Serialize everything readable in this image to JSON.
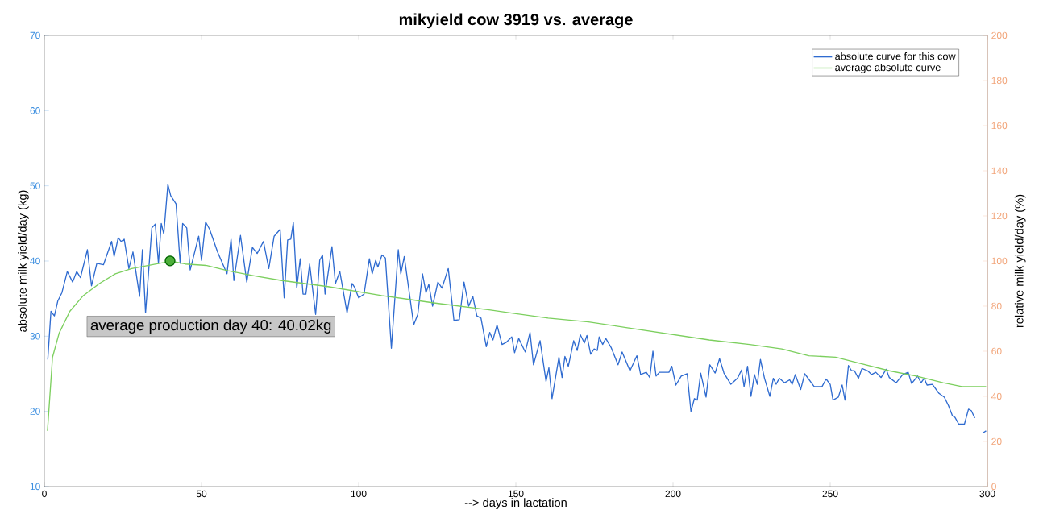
{
  "chart_data": {
    "type": "line",
    "title": "mikyield cow 3919 vs. average",
    "xlabel": "--> days in lactation",
    "ylabel": "absolute milk yield/day (kg)",
    "y2label": "relative milk yield/day (%)",
    "xlim": [
      0,
      300
    ],
    "xticks": [
      0,
      50,
      100,
      150,
      200,
      250,
      300
    ],
    "ylim": [
      10,
      70
    ],
    "yticks": [
      10,
      20,
      30,
      40,
      50,
      60,
      70
    ],
    "y2lim": [
      0,
      200
    ],
    "y2ticks": [
      0,
      20,
      40,
      60,
      80,
      100,
      120,
      140,
      160,
      180,
      200
    ],
    "legend": "top right",
    "grid": false,
    "series": [
      {
        "name": "absolute curve for this cow",
        "color": "#2f6bd0",
        "x": [
          1.1,
          2.1,
          3.2,
          4.3,
          5.6,
          7.3,
          9.0,
          10.3,
          11.5,
          13.7,
          15.0,
          16.7,
          18.8,
          21.4,
          22.2,
          23.5,
          24.4,
          25.4,
          26.9,
          28.2,
          30.3,
          31.2,
          32.2,
          34.2,
          35.3,
          36.3,
          37.2,
          38.0,
          39.3,
          40.2,
          41.9,
          43.2,
          44.0,
          45.3,
          46.4,
          49.1,
          50.0,
          51.3,
          52.6,
          55.1,
          58.1,
          59.4,
          60.3,
          62.4,
          64.4,
          66.2,
          67.7,
          69.7,
          71.4,
          73.1,
          75.0,
          76.3,
          77.4,
          78.4,
          79.2,
          80.3,
          81.4,
          82.3,
          83.2,
          84.4,
          86.3,
          87.6,
          88.5,
          89.3,
          91.5,
          92.6,
          94.0,
          96.3,
          97.9,
          98.7,
          100.0,
          101.7,
          103.4,
          104.3,
          105.4,
          106.1,
          107.4,
          108.5,
          110.4,
          112.6,
          113.4,
          114.5,
          117.5,
          118.8,
          120.3,
          121.4,
          122.3,
          123.5,
          125.2,
          126.5,
          128.5,
          130.3,
          132.0,
          133.5,
          135.0,
          136.3,
          137.6,
          138.9,
          140.6,
          141.7,
          142.7,
          144.0,
          145.6,
          147.0,
          148.7,
          149.6,
          150.9,
          153.0,
          154.5,
          155.6,
          157.7,
          159.6,
          160.5,
          161.5,
          163.7,
          164.7,
          165.6,
          166.7,
          168.4,
          169.5,
          170.5,
          171.8,
          172.6,
          173.8,
          174.9,
          175.9,
          176.5,
          177.6,
          178.6,
          180.3,
          182.5,
          183.8,
          186.3,
          188.5,
          189.7,
          191.5,
          192.6,
          193.6,
          194.6,
          195.7,
          198.7,
          199.6,
          200.9,
          202.6,
          204.5,
          205.7,
          206.8,
          207.7,
          208.8,
          210.5,
          211.7,
          213.4,
          214.8,
          216.2,
          218.4,
          220.5,
          221.8,
          222.6,
          223.7,
          224.8,
          225.9,
          226.8,
          227.8,
          229.1,
          230.8,
          231.9,
          232.8,
          233.8,
          235.5,
          237.1,
          237.9,
          238.9,
          240.6,
          241.9,
          244.9,
          247.4,
          248.7,
          250.0,
          250.9,
          252.6,
          253.8,
          254.7,
          255.8,
          256.8,
          257.7,
          259.0,
          260.1,
          261.9,
          263.2,
          264.5,
          266.2,
          267.8,
          268.8,
          271.0,
          273.1,
          274.8,
          275.9,
          277.8,
          278.9,
          279.9,
          280.8,
          282.5,
          284.6,
          286.3,
          287.6,
          288.9,
          289.7,
          290.9,
          292.7,
          294.0,
          294.9,
          296.0,
          297.5,
          298.4,
          299.6
        ],
        "values": [
          26.9,
          33.3,
          32.7,
          34.7,
          35.8,
          38.6,
          37.2,
          38.6,
          37.8,
          41.5,
          36.7,
          39.7,
          39.5,
          42.6,
          40.6,
          43.1,
          42.6,
          42.9,
          39.0,
          41.2,
          35.3,
          41.5,
          33.1,
          44.4,
          44.9,
          39.7,
          45.0,
          43.6,
          50.2,
          48.7,
          47.6,
          39.7,
          45.0,
          44.4,
          38.8,
          43.3,
          40.1,
          45.2,
          44.2,
          41.2,
          38.3,
          42.9,
          37.4,
          43.4,
          37.2,
          41.8,
          41.0,
          42.6,
          39.0,
          43.3,
          44.2,
          35.1,
          42.8,
          42.9,
          45.1,
          36.4,
          40.3,
          35.6,
          35.6,
          39.6,
          32.9,
          40.1,
          40.8,
          35.6,
          41.9,
          37.0,
          38.6,
          33.1,
          37.0,
          36.5,
          35.1,
          35.6,
          40.3,
          38.3,
          40.1,
          39.2,
          40.8,
          40.4,
          28.4,
          41.5,
          38.3,
          40.6,
          31.5,
          32.9,
          38.3,
          35.8,
          36.9,
          34.0,
          37.2,
          36.4,
          39.0,
          32.1,
          32.2,
          37.2,
          34.0,
          35.3,
          32.7,
          32.4,
          28.6,
          30.5,
          29.5,
          31.5,
          28.9,
          29.2,
          29.9,
          27.8,
          29.7,
          27.9,
          30.5,
          26.2,
          29.4,
          24.0,
          25.8,
          21.7,
          27.2,
          24.5,
          27.3,
          26.0,
          29.4,
          28.1,
          30.2,
          29.1,
          30.1,
          27.6,
          28.3,
          28.1,
          29.9,
          28.9,
          29.7,
          28.5,
          26.2,
          27.9,
          25.4,
          27.4,
          24.9,
          25.2,
          24.5,
          28.0,
          24.7,
          25.2,
          25.2,
          26.0,
          23.5,
          24.7,
          25.0,
          20.0,
          21.7,
          21.5,
          25.1,
          21.9,
          26.2,
          25.1,
          27.0,
          25.1,
          23.6,
          24.4,
          25.5,
          23.3,
          26.0,
          22.0,
          24.9,
          23.6,
          26.9,
          24.4,
          22.0,
          24.4,
          23.6,
          24.4,
          23.8,
          24.2,
          23.6,
          24.9,
          22.9,
          25.0,
          23.3,
          23.3,
          24.3,
          23.6,
          21.5,
          21.9,
          23.5,
          21.5,
          26.1,
          25.4,
          25.4,
          24.4,
          25.7,
          25.4,
          24.9,
          25.2,
          24.5,
          25.6,
          24.5,
          23.8,
          24.9,
          25.2,
          23.7,
          24.7,
          23.8,
          24.4,
          23.5,
          23.6,
          22.4,
          21.9,
          20.8,
          19.4,
          19.2,
          18.3,
          18.3,
          20.3,
          20.1,
          19.1,
          null,
          17.1,
          17.4
        ]
      },
      {
        "name": "average absolute curve",
        "color": "#7ccf5e",
        "x": [
          1,
          2.6,
          4.7,
          8.1,
          12.4,
          17.5,
          22.6,
          27.8,
          32.9,
          38,
          40,
          44.9,
          51.7,
          58.5,
          67.1,
          75.6,
          90.2,
          107.3,
          124.4,
          141.5,
          150,
          160.3,
          173.1,
          185.9,
          198.7,
          211.5,
          224.4,
          234.6,
          243.2,
          251.7,
          260.3,
          268.8,
          277.4,
          285.9,
          291.9,
          299.6
        ],
        "values": [
          17.4,
          27.2,
          30.4,
          33.3,
          35.4,
          37.0,
          38.3,
          39.0,
          39.4,
          39.8,
          40.0,
          39.6,
          39.4,
          38.7,
          38.0,
          37.4,
          36.6,
          35.4,
          34.4,
          33.5,
          33.0,
          32.4,
          31.9,
          31.1,
          30.3,
          29.5,
          28.9,
          28.3,
          27.4,
          27.2,
          26.3,
          25.4,
          24.7,
          23.8,
          23.3,
          23.3
        ]
      },
      {
        "type": "scatter",
        "color": "#4daf3a",
        "x": [
          40
        ],
        "values": [
          40.02
        ]
      }
    ],
    "annotations": [
      "average production day 40: 40.02kg"
    ]
  }
}
